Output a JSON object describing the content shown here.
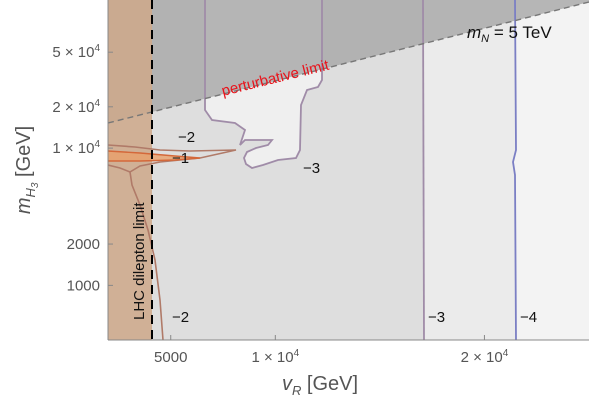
{
  "chart_data": {
    "type": "contour",
    "xlabel": {
      "main": "v",
      "sub": "R",
      "unit": " [GeV]"
    },
    "ylabel": {
      "main": "m",
      "sub": "H",
      "subsub": "3",
      "unit": " [GeV]"
    },
    "xscale": "linear",
    "yscale": "log",
    "xlim": [
      2000,
      25000
    ],
    "ylim": [
      400,
      120000
    ],
    "xticks": [
      {
        "value": 5000,
        "label": "5000"
      },
      {
        "value": 10000,
        "label": "1 × 10",
        "exp": "4"
      },
      {
        "value": 20000,
        "label": "2 × 10",
        "exp": "4"
      }
    ],
    "yticks": [
      {
        "value": 1000,
        "label": "1000"
      },
      {
        "value": 2000,
        "label": "2000"
      },
      {
        "value": 10000,
        "label": "1 × 10",
        "exp": "4"
      },
      {
        "value": 20000,
        "label": "2 × 10",
        "exp": "4"
      },
      {
        "value": 50000,
        "label": "5 × 10",
        "exp": "4"
      }
    ],
    "annotations": {
      "mass_label": {
        "main": "m",
        "sub": "N",
        "rest": " = 5 TeV"
      },
      "perturbative": "perturbative limit",
      "dilepton": "LHC dilepton limit",
      "perturbative_color": "#e8141c"
    },
    "dilepton_limit_vR": 3500,
    "perturbative_boundary": [
      [
        2000,
        18500
      ],
      [
        25000,
        120000
      ]
    ],
    "contours": [
      {
        "level": "−4",
        "color": "#7b7fc4",
        "label_points": [
          [
            21000,
            500
          ]
        ]
      },
      {
        "level": "−3",
        "color": "#a08ca8",
        "label_points": [
          [
            15300,
            500
          ],
          [
            7800,
            7000
          ]
        ]
      },
      {
        "level": "−2",
        "color": "#b07a68",
        "label_points": [
          [
            3900,
            500
          ],
          [
            5500,
            13000
          ]
        ]
      },
      {
        "level": "−1",
        "color": "#d4683a",
        "label_points": [
          [
            5200,
            9500
          ]
        ]
      }
    ],
    "regions_colors": {
      "excluded_dilepton": "#cea889",
      "perturbative_shade": "#a6a6a6",
      "level_minus3_fill": "#dedede",
      "level_minus4_fill": "#ebebeb",
      "level_below_minus4_fill": "#f3f3f3",
      "inner_light_fill": "#efefef"
    }
  }
}
